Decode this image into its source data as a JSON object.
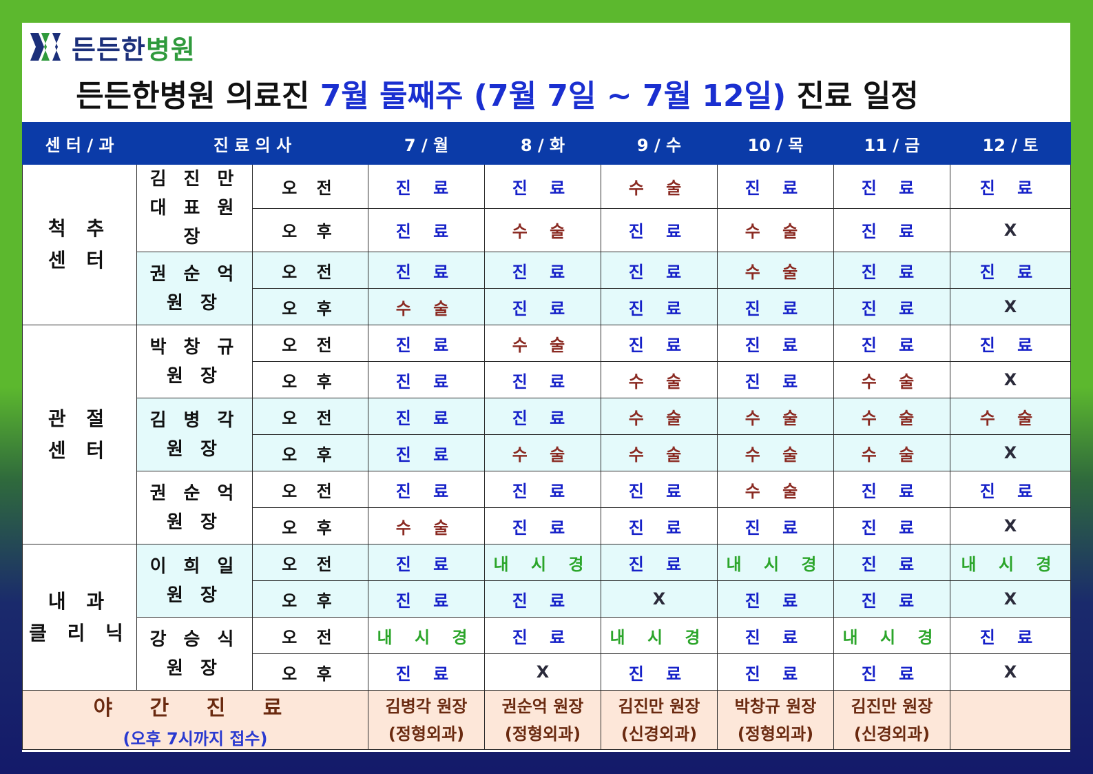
{
  "brand": {
    "part1": "든든한",
    "part2": "병원"
  },
  "title": {
    "prefix": "든든한병원 의료진 ",
    "highlight": "7월 둘째주 (7월 7일 ~ 7월 12일)",
    "suffix": " 진료 일정"
  },
  "colors": {
    "header_bg": "#0b3ba8",
    "jinryo": "#1520c8",
    "susul": "#8a2a22",
    "naesigyeong": "#2ba52a",
    "row_shade": "#e4fafb",
    "night_bg": "#fde7d9"
  },
  "headers": {
    "center": "센 터 / 과",
    "doctor": "진 료 의 사",
    "days": [
      "7 / 월",
      "8 / 화",
      "9 / 수",
      "10 / 목",
      "11 / 금",
      "12 / 토"
    ]
  },
  "groups": [
    {
      "center": [
        "척 추",
        "센 터"
      ],
      "doctors": [
        {
          "name": [
            "김 진 만",
            "대 표 원 장"
          ],
          "shade": false,
          "am": [
            "진 료",
            "진 료",
            "수 술",
            "진 료",
            "진 료",
            "진 료"
          ],
          "pm": [
            "진 료",
            "수 술",
            "진 료",
            "수 술",
            "진 료",
            "X"
          ]
        },
        {
          "name": [
            "권 순 억",
            "원 장"
          ],
          "shade": true,
          "am": [
            "진 료",
            "진 료",
            "진 료",
            "수 술",
            "진 료",
            "진 료"
          ],
          "pm": [
            "수 술",
            "진 료",
            "진 료",
            "진 료",
            "진 료",
            "X"
          ]
        }
      ]
    },
    {
      "center": [
        "관 절",
        "센 터"
      ],
      "doctors": [
        {
          "name": [
            "박 창 규",
            "원 장"
          ],
          "shade": false,
          "am": [
            "진 료",
            "수 술",
            "진 료",
            "진 료",
            "진 료",
            "진 료"
          ],
          "pm": [
            "진 료",
            "진 료",
            "수 술",
            "진 료",
            "수 술",
            "X"
          ]
        },
        {
          "name": [
            "김 병 각",
            "원 장"
          ],
          "shade": true,
          "am": [
            "진 료",
            "진 료",
            "수 술",
            "수 술",
            "수 술",
            "수 술"
          ],
          "pm": [
            "진 료",
            "수 술",
            "수 술",
            "수 술",
            "수 술",
            "X"
          ]
        },
        {
          "name": [
            "권 순 억",
            "원 장"
          ],
          "shade": false,
          "am": [
            "진 료",
            "진 료",
            "진 료",
            "수 술",
            "진 료",
            "진 료"
          ],
          "pm": [
            "수 술",
            "진 료",
            "진 료",
            "진 료",
            "진 료",
            "X"
          ]
        }
      ]
    },
    {
      "center": [
        "내 과",
        "클 리 닉"
      ],
      "doctors": [
        {
          "name": [
            "이 희 일",
            "원 장"
          ],
          "shade": true,
          "am": [
            "진 료",
            "내 시 경",
            "진 료",
            "내 시 경",
            "진 료",
            "내 시 경"
          ],
          "pm": [
            "진 료",
            "진 료",
            "X",
            "진 료",
            "진 료",
            "X"
          ]
        },
        {
          "name": [
            "강 승 식",
            "원 장"
          ],
          "shade": false,
          "am": [
            "내 시 경",
            "진 료",
            "내 시 경",
            "진 료",
            "내 시 경",
            "진 료"
          ],
          "pm": [
            "진 료",
            "X",
            "진 료",
            "진 료",
            "진 료",
            "X"
          ]
        }
      ]
    }
  ],
  "labels": {
    "am": "오 전",
    "pm": "오 후"
  },
  "night": {
    "title": "야 간 진 료",
    "subtitle": "(오후 7시까지 접수)",
    "doctors": [
      {
        "name": "김병각 원장",
        "dept": "(정형외과)"
      },
      {
        "name": "권순억 원장",
        "dept": "(정형외과)"
      },
      {
        "name": "김진만 원장",
        "dept": "(신경외과)"
      },
      {
        "name": "박창규 원장",
        "dept": "(정형외과)"
      },
      {
        "name": "김진만 원장",
        "dept": "(신경외과)"
      },
      {
        "name": "",
        "dept": ""
      }
    ]
  }
}
